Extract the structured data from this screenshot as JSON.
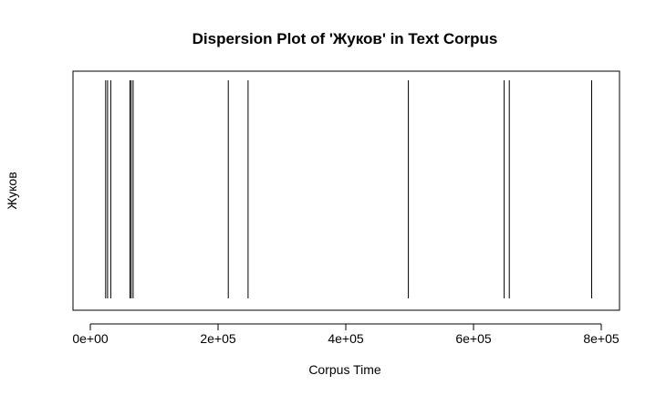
{
  "chart_data": {
    "type": "dispersion",
    "title": "Dispersion Plot of 'Жуков' in Text Corpus",
    "xlabel": "Corpus Time",
    "ylabel": "Жуков",
    "xlim": [
      0,
      800000
    ],
    "x_ticks": [
      {
        "value": 0,
        "label": "0e+00"
      },
      {
        "value": 200000,
        "label": "2e+05"
      },
      {
        "value": 400000,
        "label": "4e+05"
      },
      {
        "value": 600000,
        "label": "6e+05"
      },
      {
        "value": 800000,
        "label": "8e+05"
      }
    ],
    "series": [
      {
        "values": [
          24000,
          27000,
          32000,
          62000,
          64000,
          67000,
          216000,
          247000,
          498000,
          648000,
          656000,
          785000
        ]
      }
    ],
    "line_color": "#000000"
  }
}
